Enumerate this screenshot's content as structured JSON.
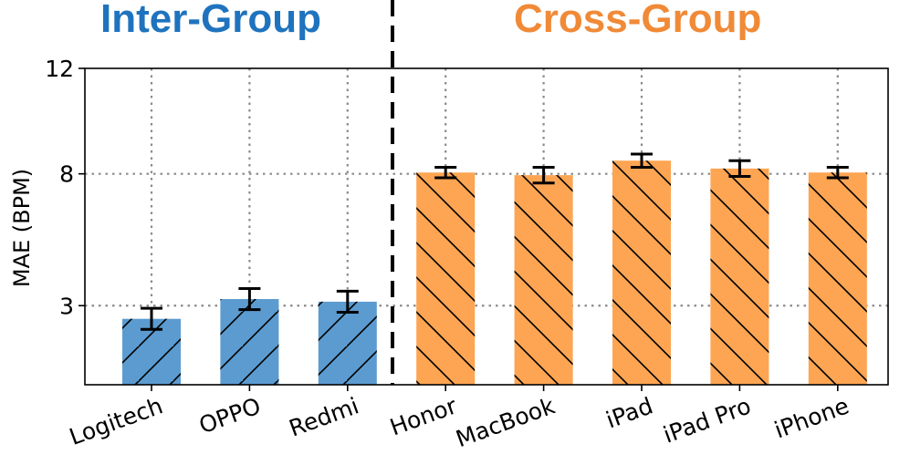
{
  "chart_data": {
    "type": "bar",
    "title": "",
    "xlabel": "",
    "ylabel": "MAE (BPM)",
    "ylim": [
      0,
      12
    ],
    "yticks": [
      3,
      8,
      12
    ],
    "grid": true,
    "groups": [
      {
        "name": "Inter-Group",
        "color": "#1f73be",
        "categories": [
          "Logitech",
          "OPPO",
          "Redmi"
        ]
      },
      {
        "name": "Cross-Group",
        "color": "#f08a37",
        "categories": [
          "Honor",
          "MacBook",
          "iPad",
          "iPad Pro",
          "iPhone"
        ]
      }
    ],
    "categories": [
      "Logitech",
      "OPPO",
      "Redmi",
      "Honor",
      "MacBook",
      "iPad",
      "iPad Pro",
      "iPhone"
    ],
    "values": [
      2.5,
      3.25,
      3.15,
      8.05,
      7.95,
      8.5,
      8.2,
      8.05
    ],
    "errors": [
      0.4,
      0.4,
      0.4,
      0.2,
      0.3,
      0.25,
      0.3,
      0.2
    ],
    "bar_colors": [
      "#5b9bd0",
      "#5b9bd0",
      "#5b9bd0",
      "#fda552",
      "#fda552",
      "#fda552",
      "#fda552",
      "#fda552"
    ]
  }
}
